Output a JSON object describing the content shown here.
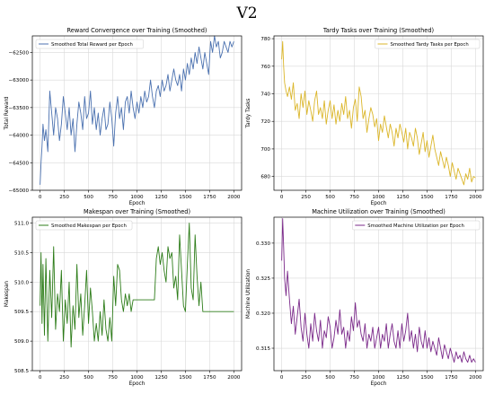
{
  "figure": {
    "suptitle": "V2"
  },
  "chart_data": [
    {
      "type": "line",
      "title": "Reward Convergence over Training (Smoothed)",
      "xlabel": "Epoch",
      "ylabel": "Total Reward",
      "xlim": [
        -80,
        2080
      ],
      "ylim": [
        -65000,
        -62200
      ],
      "xticks": [
        0,
        250,
        500,
        750,
        1000,
        1250,
        1500,
        1750,
        2000
      ],
      "yticks": [
        -65000,
        -64500,
        -64000,
        -63500,
        -63000,
        -62500
      ],
      "xtick_labels": [
        "0",
        "250",
        "500",
        "750",
        "1000",
        "1250",
        "1500",
        "1750",
        "2000"
      ],
      "ytick_labels": [
        "−65000",
        "−64500",
        "−64000",
        "−63500",
        "−63000",
        "−62500"
      ],
      "grid": true,
      "legend": "upper-left",
      "series": [
        {
          "name": "Smoothed Total Reward per Epoch",
          "color": "#4c72b0",
          "x": [
            0,
            10,
            20,
            30,
            45,
            60,
            80,
            100,
            120,
            140,
            160,
            180,
            200,
            220,
            240,
            260,
            280,
            300,
            320,
            340,
            360,
            380,
            400,
            420,
            440,
            460,
            480,
            500,
            520,
            540,
            560,
            580,
            600,
            620,
            640,
            660,
            680,
            700,
            720,
            740,
            760,
            780,
            800,
            820,
            840,
            860,
            880,
            900,
            920,
            940,
            960,
            980,
            1000,
            1020,
            1040,
            1060,
            1080,
            1100,
            1120,
            1140,
            1160,
            1180,
            1200,
            1220,
            1240,
            1260,
            1280,
            1300,
            1320,
            1340,
            1360,
            1380,
            1400,
            1420,
            1440,
            1460,
            1480,
            1500,
            1520,
            1540,
            1560,
            1580,
            1600,
            1620,
            1640,
            1660,
            1680,
            1700,
            1720,
            1740,
            1760,
            1780,
            1800,
            1820,
            1840,
            1860,
            1880,
            1900,
            1920,
            1940,
            1960,
            1980,
            2000
          ],
          "y": [
            -64900,
            -64500,
            -64200,
            -63800,
            -64100,
            -63900,
            -64300,
            -63200,
            -63600,
            -64000,
            -63500,
            -63700,
            -64100,
            -63800,
            -63300,
            -63600,
            -63900,
            -63500,
            -64000,
            -63700,
            -64300,
            -63800,
            -63400,
            -63600,
            -63900,
            -63300,
            -63700,
            -63600,
            -63200,
            -63800,
            -63500,
            -63900,
            -63600,
            -64000,
            -63700,
            -63500,
            -63900,
            -63800,
            -63400,
            -63700,
            -64200,
            -63600,
            -63300,
            -63700,
            -63500,
            -63900,
            -63400,
            -63300,
            -63600,
            -63200,
            -63500,
            -63700,
            -63400,
            -63600,
            -63300,
            -63500,
            -63200,
            -63400,
            -63300,
            -63000,
            -63300,
            -63500,
            -63200,
            -63100,
            -63300,
            -63000,
            -63200,
            -63100,
            -62900,
            -63200,
            -63000,
            -62800,
            -63000,
            -63100,
            -62900,
            -63200,
            -62800,
            -63000,
            -62700,
            -62900,
            -62600,
            -62800,
            -62500,
            -62700,
            -62400,
            -62600,
            -62800,
            -62500,
            -62700,
            -62900,
            -62300,
            -62500,
            -62200,
            -62400,
            -62300,
            -62600,
            -62500,
            -62300,
            -62400,
            -62500,
            -62300,
            -62400,
            -62300
          ]
        }
      ]
    },
    {
      "type": "line",
      "title": "Tardy Tasks over Training (Smoothed)",
      "xlabel": "Epoch",
      "ylabel": "Tardy Tasks",
      "xlim": [
        -80,
        2080
      ],
      "ylim": [
        670,
        782
      ],
      "xticks": [
        0,
        250,
        500,
        750,
        1000,
        1250,
        1500,
        1750,
        2000
      ],
      "yticks": [
        680,
        700,
        720,
        740,
        760,
        780
      ],
      "xtick_labels": [
        "0",
        "250",
        "500",
        "750",
        "1000",
        "1250",
        "1500",
        "1750",
        "2000"
      ],
      "ytick_labels": [
        "680",
        "700",
        "720",
        "740",
        "760",
        "780"
      ],
      "grid": true,
      "legend": "upper-right",
      "series": [
        {
          "name": "Smoothed Tardy Tasks per Epoch",
          "color": "#dbb62a",
          "x": [
            0,
            10,
            20,
            30,
            45,
            60,
            80,
            100,
            120,
            140,
            160,
            180,
            200,
            220,
            240,
            260,
            280,
            300,
            320,
            340,
            360,
            380,
            400,
            420,
            440,
            460,
            480,
            500,
            520,
            540,
            560,
            580,
            600,
            620,
            640,
            660,
            680,
            700,
            720,
            740,
            760,
            780,
            800,
            820,
            840,
            860,
            880,
            900,
            920,
            940,
            960,
            980,
            1000,
            1020,
            1040,
            1060,
            1080,
            1100,
            1120,
            1140,
            1160,
            1180,
            1200,
            1220,
            1240,
            1260,
            1280,
            1300,
            1320,
            1340,
            1360,
            1380,
            1400,
            1420,
            1440,
            1460,
            1480,
            1500,
            1520,
            1540,
            1560,
            1580,
            1600,
            1620,
            1640,
            1660,
            1680,
            1700,
            1720,
            1740,
            1760,
            1780,
            1800,
            1820,
            1840,
            1860,
            1880,
            1900,
            1920,
            1940,
            1960,
            1980,
            2000
          ],
          "y": [
            765,
            778,
            760,
            748,
            742,
            738,
            745,
            736,
            748,
            728,
            733,
            722,
            740,
            730,
            742,
            725,
            735,
            728,
            720,
            735,
            742,
            725,
            730,
            722,
            735,
            718,
            728,
            735,
            722,
            732,
            718,
            728,
            720,
            733,
            725,
            738,
            722,
            728,
            715,
            730,
            736,
            720,
            745,
            738,
            722,
            728,
            712,
            722,
            730,
            725,
            716,
            722,
            706,
            718,
            712,
            724,
            716,
            708,
            718,
            712,
            702,
            715,
            708,
            718,
            712,
            705,
            715,
            700,
            712,
            708,
            702,
            715,
            708,
            696,
            704,
            712,
            698,
            706,
            694,
            702,
            710,
            700,
            694,
            688,
            698,
            692,
            686,
            694,
            688,
            680,
            690,
            684,
            678,
            686,
            682,
            678,
            674,
            682,
            678,
            686,
            676,
            680,
            679
          ]
        }
      ]
    },
    {
      "type": "line",
      "title": "Makespan over Training (Smoothed)",
      "xlabel": "Epoch",
      "ylabel": "Makespan",
      "xlim": [
        -80,
        2080
      ],
      "ylim": [
        508.5,
        511.1
      ],
      "xticks": [
        0,
        250,
        500,
        750,
        1000,
        1250,
        1500,
        1750,
        2000
      ],
      "yticks": [
        508.5,
        509.0,
        509.5,
        510.0,
        510.5,
        511.0
      ],
      "xtick_labels": [
        "0",
        "250",
        "500",
        "750",
        "1000",
        "1250",
        "1500",
        "1750",
        "2000"
      ],
      "ytick_labels": [
        "508.5",
        "509.0",
        "509.5",
        "510.0",
        "510.5",
        "511.0"
      ],
      "grid": true,
      "legend": "upper-left",
      "series": [
        {
          "name": "Smoothed Makespan per Epoch",
          "color": "#2e7d1a",
          "x": [
            0,
            10,
            20,
            30,
            45,
            60,
            80,
            100,
            120,
            140,
            160,
            180,
            200,
            220,
            240,
            260,
            280,
            300,
            320,
            340,
            360,
            380,
            400,
            420,
            440,
            460,
            480,
            500,
            520,
            540,
            560,
            580,
            600,
            620,
            640,
            660,
            680,
            700,
            720,
            740,
            760,
            780,
            800,
            820,
            840,
            860,
            880,
            900,
            920,
            940,
            960,
            980,
            1000,
            1020,
            1040,
            1060,
            1080,
            1100,
            1120,
            1140,
            1160,
            1180,
            1200,
            1220,
            1240,
            1260,
            1280,
            1300,
            1320,
            1340,
            1360,
            1380,
            1400,
            1420,
            1440,
            1460,
            1480,
            1500,
            1520,
            1540,
            1560,
            1580,
            1600,
            1620,
            1640,
            1660,
            1680,
            1700,
            1720,
            1740,
            1760,
            1780,
            1800,
            1820,
            1840,
            1860,
            1880,
            1900,
            1920,
            1940,
            1960,
            1980,
            2000
          ],
          "y": [
            509.6,
            510.5,
            509.3,
            510.3,
            509.1,
            510.4,
            509.0,
            510.2,
            509.4,
            510.6,
            509.2,
            509.8,
            509.5,
            510.2,
            509.0,
            509.7,
            509.3,
            510.0,
            508.9,
            509.6,
            509.2,
            510.3,
            509.4,
            509.8,
            509.1,
            509.6,
            510.2,
            509.3,
            509.9,
            509.5,
            509.0,
            509.3,
            509.0,
            509.5,
            509.1,
            509.7,
            509.2,
            509.0,
            509.4,
            509.0,
            510.1,
            509.6,
            510.3,
            510.2,
            509.7,
            509.5,
            509.8,
            509.6,
            509.8,
            509.5,
            509.7,
            509.7,
            509.7,
            509.7,
            509.7,
            509.7,
            509.7,
            509.7,
            509.7,
            509.7,
            509.7,
            509.7,
            510.4,
            510.6,
            510.3,
            510.5,
            510.2,
            510.0,
            510.6,
            510.4,
            510.5,
            509.9,
            510.1,
            509.7,
            510.8,
            510.2,
            509.6,
            509.5,
            510.3,
            511.0,
            509.9,
            509.7,
            510.8,
            510.1,
            509.6,
            510.0,
            509.5,
            509.5,
            509.5,
            509.5,
            509.5,
            509.5,
            509.5,
            509.5,
            509.5,
            509.5,
            509.5,
            509.5,
            509.5,
            509.5,
            509.5,
            509.5,
            509.5
          ]
        }
      ]
    },
    {
      "type": "line",
      "title": "Machine Utilization over Training (Smoothed)",
      "xlabel": "Epoch",
      "ylabel": "Machine Utilization",
      "xlim": [
        -80,
        2080
      ],
      "ylim": [
        0.3118,
        0.3337
      ],
      "xticks": [
        0,
        250,
        500,
        750,
        1000,
        1250,
        1500,
        1750,
        2000
      ],
      "yticks": [
        0.315,
        0.32,
        0.325,
        0.33
      ],
      "xtick_labels": [
        "0",
        "250",
        "500",
        "750",
        "1000",
        "1250",
        "1500",
        "1750",
        "2000"
      ],
      "ytick_labels": [
        "0.315",
        "0.320",
        "0.325",
        "0.330"
      ],
      "grid": true,
      "legend": "upper-right",
      "series": [
        {
          "name": "Smoothed Machine Utilization per Epoch",
          "color": "#7b2a8a",
          "x": [
            0,
            10,
            20,
            30,
            45,
            60,
            80,
            100,
            120,
            140,
            160,
            180,
            200,
            220,
            240,
            260,
            280,
            300,
            320,
            340,
            360,
            380,
            400,
            420,
            440,
            460,
            480,
            500,
            520,
            540,
            560,
            580,
            600,
            620,
            640,
            660,
            680,
            700,
            720,
            740,
            760,
            780,
            800,
            820,
            840,
            860,
            880,
            900,
            920,
            940,
            960,
            980,
            1000,
            1020,
            1040,
            1060,
            1080,
            1100,
            1120,
            1140,
            1160,
            1180,
            1200,
            1220,
            1240,
            1260,
            1280,
            1300,
            1320,
            1340,
            1360,
            1380,
            1400,
            1420,
            1440,
            1460,
            1480,
            1500,
            1520,
            1540,
            1560,
            1580,
            1600,
            1620,
            1640,
            1660,
            1680,
            1700,
            1720,
            1740,
            1760,
            1780,
            1800,
            1820,
            1840,
            1860,
            1880,
            1900,
            1920,
            1940,
            1960,
            1980,
            2000
          ],
          "y": [
            0.3275,
            0.3335,
            0.3295,
            0.325,
            0.3225,
            0.326,
            0.322,
            0.3185,
            0.321,
            0.317,
            0.3195,
            0.322,
            0.318,
            0.316,
            0.32,
            0.317,
            0.315,
            0.3185,
            0.316,
            0.32,
            0.3175,
            0.316,
            0.319,
            0.315,
            0.3175,
            0.3165,
            0.3195,
            0.318,
            0.315,
            0.3165,
            0.319,
            0.317,
            0.3205,
            0.317,
            0.318,
            0.315,
            0.3175,
            0.316,
            0.3195,
            0.3175,
            0.3215,
            0.318,
            0.319,
            0.317,
            0.316,
            0.3185,
            0.315,
            0.317,
            0.316,
            0.318,
            0.315,
            0.3165,
            0.318,
            0.315,
            0.317,
            0.316,
            0.3185,
            0.315,
            0.317,
            0.3185,
            0.316,
            0.315,
            0.3175,
            0.315,
            0.3185,
            0.316,
            0.3175,
            0.32,
            0.316,
            0.3175,
            0.315,
            0.317,
            0.3145,
            0.318,
            0.316,
            0.315,
            0.3175,
            0.315,
            0.3165,
            0.3145,
            0.316,
            0.315,
            0.314,
            0.3165,
            0.315,
            0.3135,
            0.3155,
            0.3145,
            0.3135,
            0.315,
            0.314,
            0.313,
            0.3145,
            0.3135,
            0.314,
            0.313,
            0.3145,
            0.3135,
            0.313,
            0.314,
            0.313,
            0.3135,
            0.313
          ]
        }
      ]
    }
  ]
}
